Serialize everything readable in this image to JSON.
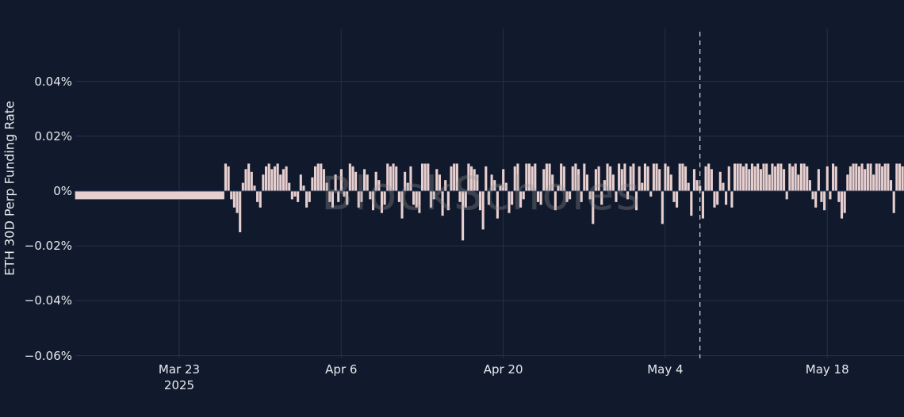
{
  "chart_data": {
    "type": "bar",
    "title": "",
    "xlabel": "",
    "ylabel": "ETH 30D Perp Funding Rate",
    "ylim": [
      -0.06,
      0.05
    ],
    "y_unit": "%",
    "yticks": [
      "0.04%",
      "0.02%",
      "0%",
      "−0.02%",
      "−0.04%",
      "−0.06%"
    ],
    "ytick_values": [
      0.04,
      0.02,
      0,
      -0.02,
      -0.04,
      -0.06
    ],
    "xticks": [
      {
        "label": "Mar 23",
        "sublabel": "2025",
        "day": 9
      },
      {
        "label": "Apr 6",
        "sublabel": "",
        "day": 23
      },
      {
        "label": "Apr 20",
        "sublabel": "",
        "day": 37
      },
      {
        "label": "May 4",
        "sublabel": "",
        "day": 51
      },
      {
        "label": "May 18",
        "sublabel": "",
        "day": 65
      }
    ],
    "x_start": "2025-03-14",
    "x_end": "2025-05-25",
    "grid": true,
    "legend": "none",
    "annotation": {
      "type": "vertical-dashed-line",
      "date": "2025-05-07",
      "day": 54
    },
    "series": [
      {
        "name": "ETH 30D Perp Funding Rate",
        "color": "#e8cfcf",
        "flat_segment": {
          "start_day": 0,
          "end_day": 12.9,
          "value": -0.003
        },
        "points_per_day": 4,
        "start_day": 12.9,
        "values": [
          0.01,
          0.009,
          -0.003,
          -0.006,
          -0.008,
          -0.015,
          0.003,
          0.008,
          0.01,
          0.007,
          0.002,
          -0.004,
          -0.006,
          0.006,
          0.009,
          0.01,
          0.008,
          0.009,
          0.01,
          0.006,
          0.008,
          0.009,
          0.003,
          -0.003,
          -0.002,
          -0.004,
          0.006,
          0.002,
          -0.006,
          -0.004,
          0.005,
          0.009,
          0.01,
          0.01,
          0.008,
          0.003,
          -0.004,
          -0.006,
          0.006,
          -0.004,
          0.008,
          -0.002,
          -0.005,
          0.01,
          0.009,
          0.007,
          -0.006,
          -0.004,
          0.008,
          0.006,
          -0.003,
          -0.007,
          0.007,
          0.004,
          -0.008,
          -0.005,
          0.01,
          0.009,
          0.01,
          0.009,
          -0.004,
          -0.01,
          0.007,
          0.003,
          0.009,
          -0.005,
          -0.006,
          -0.008,
          0.01,
          0.01,
          0.01,
          -0.006,
          -0.003,
          0.008,
          0.006,
          -0.009,
          0.004,
          -0.007,
          0.009,
          0.01,
          0.01,
          -0.004,
          -0.018,
          -0.006,
          0.01,
          0.009,
          0.008,
          0.006,
          -0.007,
          -0.014,
          0.009,
          -0.005,
          0.006,
          0.004,
          -0.01,
          0.002,
          0.008,
          0.003,
          -0.008,
          -0.005,
          0.009,
          0.01,
          -0.006,
          -0.003,
          0.01,
          0.01,
          0.009,
          0.01,
          -0.004,
          -0.005,
          0.008,
          0.01,
          0.01,
          0.006,
          -0.007,
          0.002,
          0.01,
          0.009,
          -0.004,
          -0.003,
          0.009,
          0.01,
          0.008,
          -0.004,
          0.01,
          0.006,
          -0.003,
          -0.012,
          0.008,
          0.009,
          -0.005,
          0.004,
          0.01,
          0.009,
          0.006,
          -0.004,
          0.01,
          0.008,
          0.01,
          -0.003,
          0.009,
          0.01,
          -0.007,
          0.009,
          0.003,
          0.01,
          0.009,
          -0.002,
          0.01,
          0.01,
          0.008,
          -0.012,
          0.01,
          0.009,
          0.006,
          -0.004,
          -0.006,
          0.01,
          0.01,
          0.009,
          0.003,
          -0.009,
          0.008,
          0.004,
          0.002,
          -0.01,
          0.009,
          0.01,
          0.008,
          -0.006,
          -0.005,
          0.007,
          0.003,
          -0.005,
          0.009,
          -0.006,
          0.01,
          0.01,
          0.01,
          0.009,
          0.01,
          0.008,
          0.01,
          0.009,
          0.01,
          0.008,
          0.01,
          0.01,
          0.006,
          0.01,
          0.009,
          0.01,
          0.01,
          0.008,
          -0.003,
          0.01,
          0.009,
          0.01,
          0.006,
          0.01,
          0.01,
          0.009,
          0.004,
          -0.003,
          -0.006,
          0.008,
          -0.004,
          -0.007,
          0.009,
          -0.003,
          0.01,
          0.009,
          -0.004,
          -0.01,
          -0.008,
          0.006,
          0.009,
          0.01,
          0.01,
          0.009,
          0.01,
          0.008,
          0.01,
          0.01,
          0.006,
          0.01,
          0.01,
          0.009,
          0.01,
          0.01,
          0.004,
          -0.008,
          0.01,
          0.01,
          0.009,
          0.01,
          0.007,
          0.01,
          0.01,
          0.008,
          0.01,
          0.01,
          0.009,
          0.01
        ]
      }
    ]
  }
}
